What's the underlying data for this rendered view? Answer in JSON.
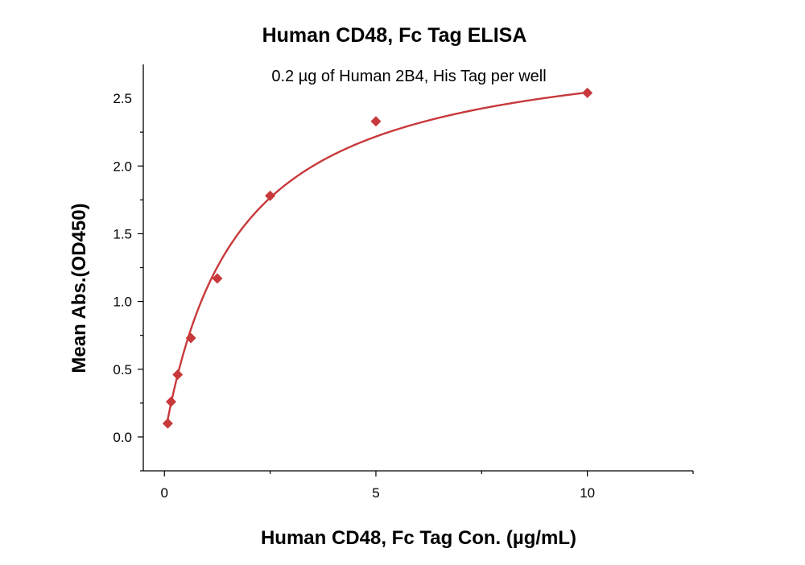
{
  "chart_data": {
    "type": "scatter",
    "title": "Human CD48, Fc Tag ELISA",
    "subtitle": "0.2 µg of Human 2B4, His Tag per well",
    "xlabel": "Human CD48, Fc Tag Con. (µg/mL)",
    "ylabel": "Mean Abs.(OD450)",
    "xlim": [
      -0.5,
      12.5
    ],
    "ylim": [
      -0.25,
      2.75
    ],
    "x_ticks": [
      0,
      5,
      10
    ],
    "x_tick_labels": [
      "0",
      "5",
      "10"
    ],
    "y_ticks": [
      0.0,
      0.5,
      1.0,
      1.5,
      2.0,
      2.5
    ],
    "y_tick_labels": [
      "0.0",
      "0.5",
      "1.0",
      "1.5",
      "2.0",
      "2.5"
    ],
    "grid": false,
    "series": [
      {
        "marker": "diamond",
        "color": "#c8393b",
        "x": [
          0.078,
          0.156,
          0.313,
          0.625,
          1.25,
          2.5,
          5,
          10
        ],
        "y": [
          0.1,
          0.26,
          0.46,
          0.73,
          1.17,
          1.78,
          2.33,
          2.54
        ],
        "fit": {
          "model": "hyperbolic",
          "bmax": 2.98,
          "kd": 1.72,
          "offset": 0.0
        }
      }
    ]
  }
}
